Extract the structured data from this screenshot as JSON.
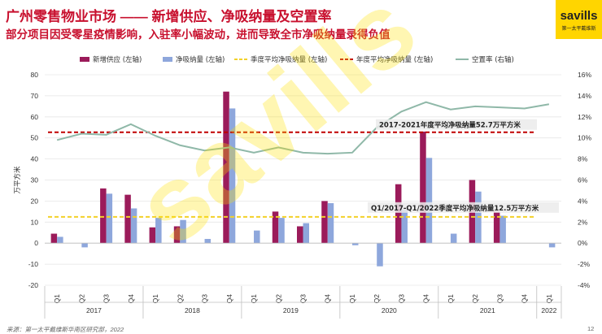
{
  "header": {
    "title": "广州零售物业市场 —— 新增供应、净吸纳量及空置率",
    "subtitle": "部分项目因受零星疫情影响，入驻率小幅波动，进而导致全市净吸纳量录得负值"
  },
  "logo": {
    "word": "savills",
    "sub": "第一太平戴维斯"
  },
  "watermark": "savills",
  "footer": {
    "source": "来源：第一太平戴维斯华南区研究部，2022",
    "page": "12"
  },
  "colors": {
    "supply": "#9b1b5a",
    "absorption": "#8ea7dc",
    "quarterly_avg": "#f2d129",
    "annual_avg": "#c00000",
    "vacancy": "#8fb8a8"
  },
  "chart_data": {
    "type": "bar",
    "legend_position": "top",
    "grid": true,
    "categories": [
      "Q1",
      "Q2",
      "Q3",
      "Q4",
      "Q1",
      "Q2",
      "Q3",
      "Q4",
      "Q1",
      "Q2",
      "Q3",
      "Q4",
      "Q1",
      "Q2",
      "Q3",
      "Q4",
      "Q1",
      "Q2",
      "Q3",
      "Q4",
      "Q1"
    ],
    "year_groups": [
      {
        "label": "2017",
        "span": 4
      },
      {
        "label": "2018",
        "span": 4
      },
      {
        "label": "2019",
        "span": 4
      },
      {
        "label": "2020",
        "span": 4
      },
      {
        "label": "2021",
        "span": 4
      },
      {
        "label": "2022",
        "span": 1
      }
    ],
    "ylabel": "万平方米",
    "ylim": [
      -20,
      80
    ],
    "yticks": [
      -20,
      -10,
      0,
      10,
      20,
      30,
      40,
      50,
      60,
      70,
      80
    ],
    "y2lim": [
      -4,
      16
    ],
    "y2ticks": [
      "-4%",
      "-2%",
      "0%",
      "2%",
      "4%",
      "6%",
      "8%",
      "10%",
      "12%",
      "14%",
      "16%"
    ],
    "series": [
      {
        "name": "新增供应 (左轴)",
        "type": "bar",
        "values": [
          4.5,
          0,
          26,
          23,
          7.5,
          8,
          0,
          72,
          0,
          15,
          8,
          20,
          0,
          0,
          28,
          53,
          0,
          30,
          15,
          0,
          0
        ]
      },
      {
        "name": "净吸纳量 (左轴)",
        "type": "bar",
        "values": [
          3,
          -2,
          23.5,
          16.5,
          12,
          11,
          2,
          64,
          6,
          12,
          9.5,
          19,
          -1,
          -11,
          16,
          40.5,
          4.5,
          24.5,
          13,
          0,
          -2
        ]
      },
      {
        "name": "季度平均净吸纳量 (左轴)",
        "type": "hline",
        "value": 12.5
      },
      {
        "name": "年度平均净吸纳量 (左轴)",
        "type": "hline",
        "value": 52.7
      },
      {
        "name": "空置率 (右轴)",
        "type": "line",
        "axis": "right",
        "values": [
          9.8,
          10.4,
          10.3,
          11.3,
          10.2,
          9.3,
          8.8,
          9.1,
          8.6,
          9.1,
          8.6,
          8.5,
          8.6,
          11.0,
          12.5,
          13.4,
          12.7,
          13.0,
          12.9,
          12.8,
          13.2
        ]
      }
    ],
    "annotations": [
      {
        "text": "2017-2021年度平均净吸纳量52.7万平方米",
        "series": "年度平均净吸纳量 (左轴)"
      },
      {
        "text": "Q1/2017-Q1/2022季度平均净吸纳量12.5万平方米",
        "series": "季度平均净吸纳量 (左轴)"
      }
    ]
  }
}
